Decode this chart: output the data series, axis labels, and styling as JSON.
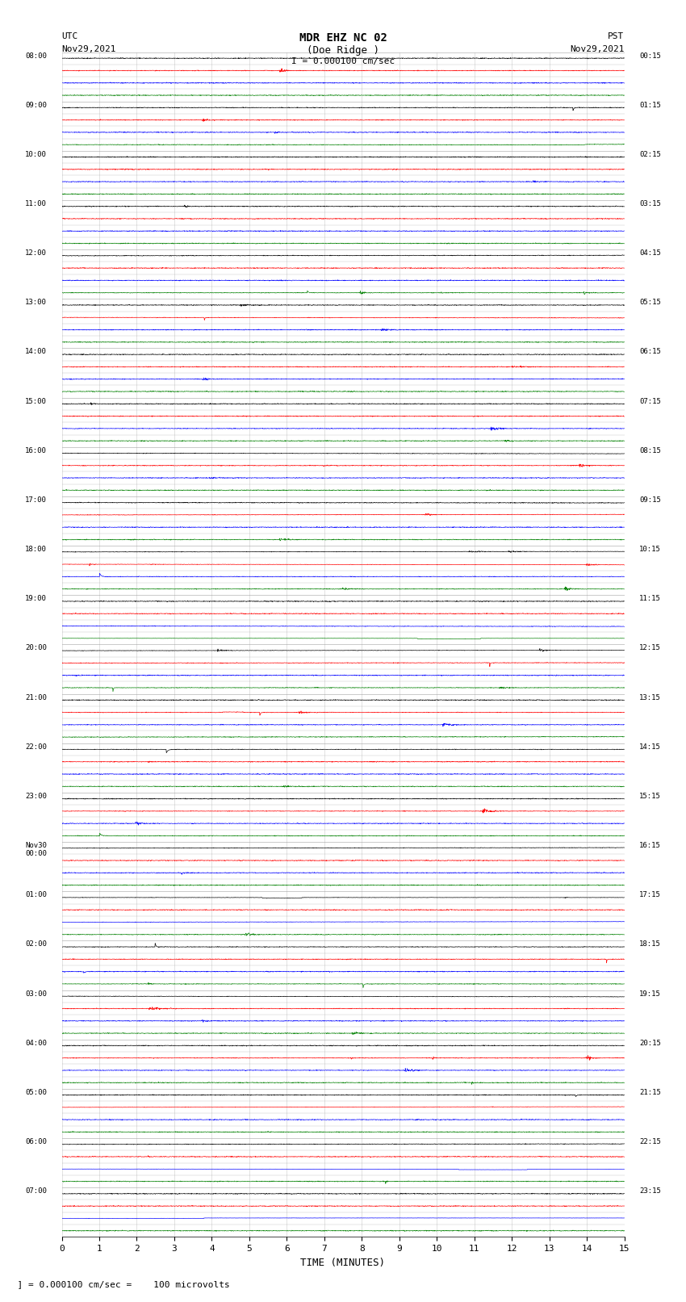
{
  "title_line1": "MDR EHZ NC 02",
  "title_line2": "(Doe Ridge )",
  "scale_label": "I = 0.000100 cm/sec",
  "xlabel": "TIME (MINUTES)",
  "bottom_label": "  ] = 0.000100 cm/sec =    100 microvolts",
  "xlim": [
    0,
    15
  ],
  "xticks": [
    0,
    1,
    2,
    3,
    4,
    5,
    6,
    7,
    8,
    9,
    10,
    11,
    12,
    13,
    14,
    15
  ],
  "num_hours": 24,
  "traces_per_hour": 4,
  "fig_width": 8.5,
  "fig_height": 16.13,
  "dpi": 100,
  "background_color": "#ffffff",
  "grid_color": "#999999",
  "trace_colors": [
    "black",
    "red",
    "blue",
    "green"
  ],
  "utc_hour_labels": [
    "08:00",
    "09:00",
    "10:00",
    "11:00",
    "12:00",
    "13:00",
    "14:00",
    "15:00",
    "16:00",
    "17:00",
    "18:00",
    "19:00",
    "20:00",
    "21:00",
    "22:00",
    "23:00",
    "Nov30\n00:00",
    "01:00",
    "02:00",
    "03:00",
    "04:00",
    "05:00",
    "06:00",
    "07:00"
  ],
  "pst_hour_labels": [
    "00:15",
    "01:15",
    "02:15",
    "03:15",
    "04:15",
    "05:15",
    "06:15",
    "07:15",
    "08:15",
    "09:15",
    "10:15",
    "11:15",
    "12:15",
    "13:15",
    "14:15",
    "15:15",
    "16:15",
    "17:15",
    "18:15",
    "19:15",
    "20:15",
    "21:15",
    "22:15",
    "23:15"
  ],
  "seed": 42
}
